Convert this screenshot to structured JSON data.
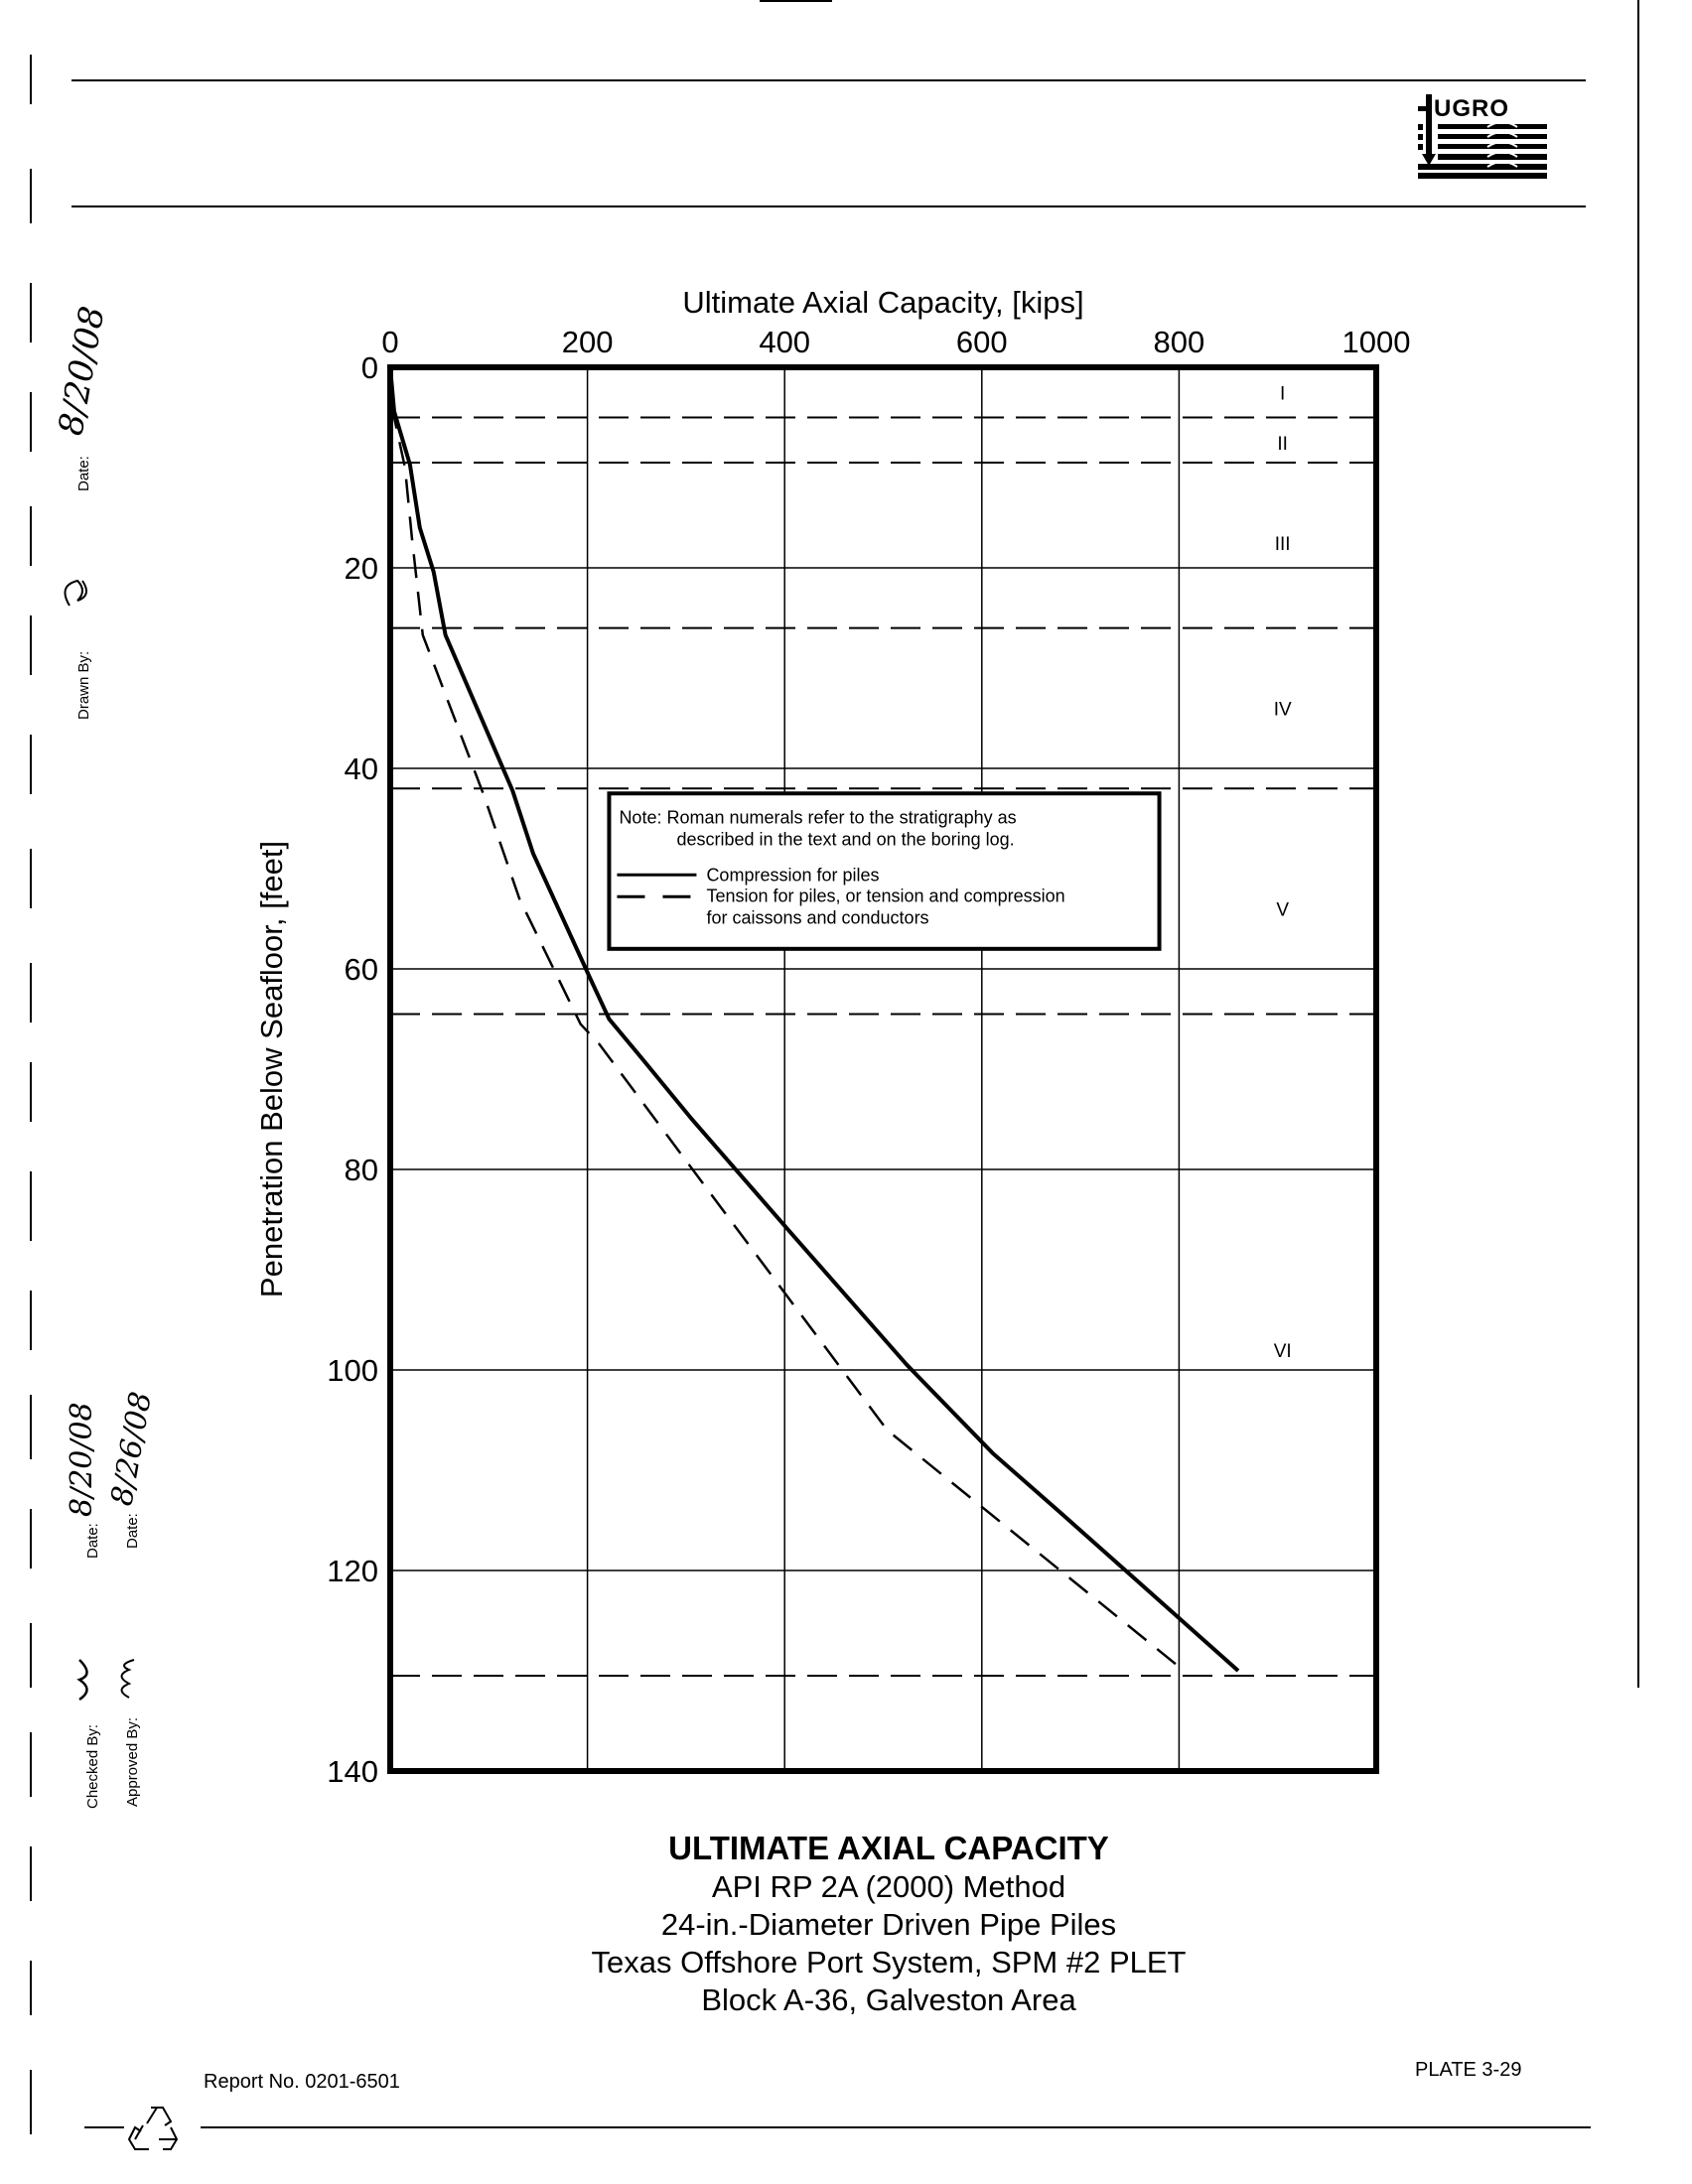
{
  "header": {
    "logo_text": "FUGRO"
  },
  "margin": {
    "drawn_by_label": "Drawn By:",
    "drawn_date_label": "Date:",
    "drawn_date_value": "8/20/08",
    "checked_by_label": "Checked By:",
    "checked_date_label": "Date:",
    "checked_date_value": "8/20/08",
    "approved_by_label": "Approved By:",
    "approved_date_label": "Date:",
    "approved_date_value": "8/26/08"
  },
  "chart_data": {
    "type": "line",
    "xlabel": "Ultimate Axial Capacity, [kips]",
    "ylabel": "Penetration Below Seafloor, [feet]",
    "xlim": [
      0,
      1000
    ],
    "ylim": [
      0,
      140
    ],
    "y_inverted": true,
    "x_axis_position": "top",
    "xticks": [
      0,
      200,
      400,
      600,
      800,
      1000
    ],
    "yticks": [
      0,
      20,
      40,
      60,
      80,
      100,
      120,
      140
    ],
    "grid": true,
    "series": [
      {
        "name": "Compression for piles",
        "style": "solid",
        "x": [
          0,
          4,
          20,
          30,
          44,
          56,
          124,
          145,
          204,
          222,
          255,
          306,
          407,
          524,
          611,
          684,
          860
        ],
        "y": [
          0,
          4.4,
          9.7,
          16,
          20.4,
          26.7,
          42.2,
          48.5,
          61.2,
          65,
          68.9,
          75,
          86.4,
          99.5,
          108.3,
          114.6,
          130
        ]
      },
      {
        "name": "Tension for piles, or tension and compression for caissons and conductors",
        "style": "dashed",
        "x": [
          0,
          4,
          15,
          22,
          33,
          95,
          131,
          193,
          212,
          299,
          504,
          805
        ],
        "y": [
          0,
          5,
          10,
          17,
          26.7,
          42.7,
          53,
          65.5,
          67.5,
          79,
          106,
          130
        ]
      }
    ],
    "legend_lines": [
      "Compression for piles",
      "Tension for piles, or tension and compression",
      "for caissons and conductors"
    ],
    "note_lines": [
      "Note:  Roman numerals refer to the stratigraphy as",
      "described in the text and on the boring log."
    ],
    "legend_position": "center",
    "stratum_boundaries": [
      5,
      9.5,
      26,
      42,
      64.5,
      130.5
    ],
    "strata": [
      {
        "label": "I",
        "depth": 2.5
      },
      {
        "label": "II",
        "depth": 7.5
      },
      {
        "label": "III",
        "depth": 17.5
      },
      {
        "label": "IV",
        "depth": 34
      },
      {
        "label": "V",
        "depth": 54
      },
      {
        "label": "VI",
        "depth": 98
      }
    ]
  },
  "title_block": {
    "title": "ULTIMATE AXIAL CAPACITY",
    "lines": [
      "API RP 2A (2000) Method",
      "24-in.-Diameter Driven Pipe Piles",
      "Texas Offshore Port System, SPM #2 PLET",
      "Block A-36, Galveston Area"
    ]
  },
  "footer": {
    "report_no": "Report No. 0201-6501",
    "plate": "PLATE 3-29"
  }
}
